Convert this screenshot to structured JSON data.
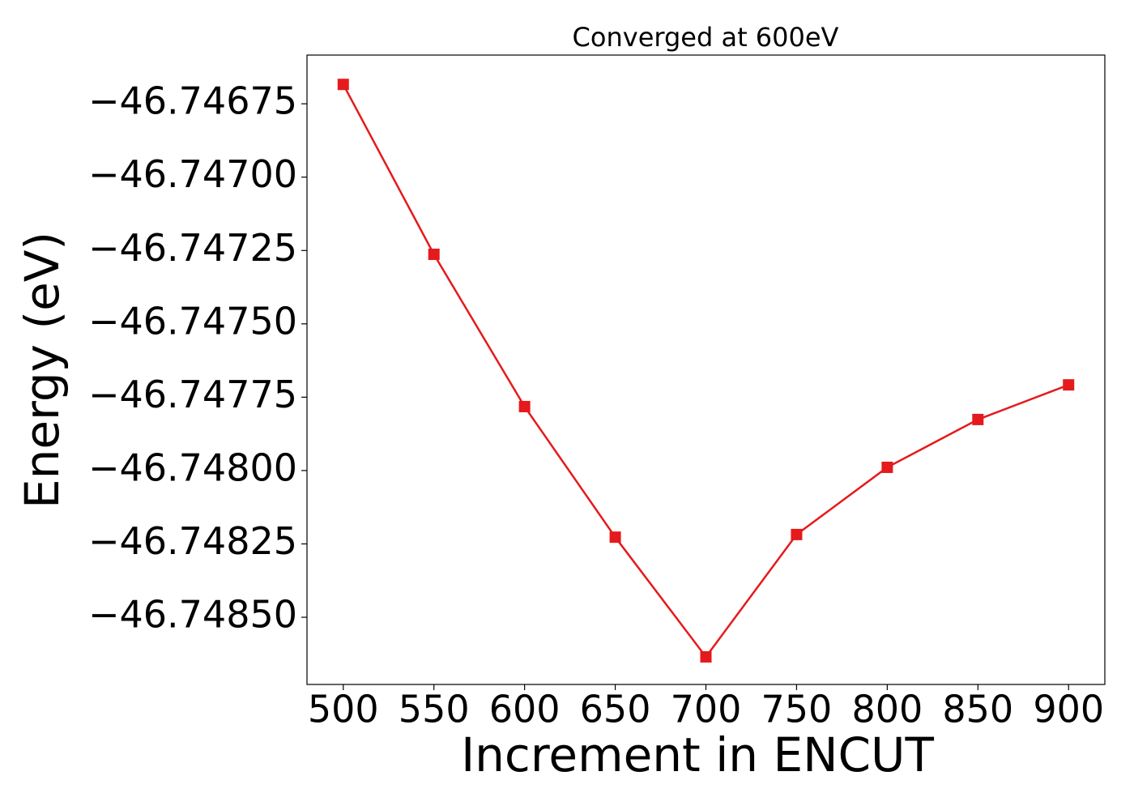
{
  "chart_data": {
    "type": "line",
    "title": "Converged at 600eV",
    "x_label": "Increment in ENCUT",
    "y_label": "Energy (eV)",
    "x": [
      500,
      550,
      600,
      650,
      700,
      750,
      800,
      850,
      900
    ],
    "values": [
      -46.746684,
      -46.747263,
      -46.747782,
      -46.748227,
      -46.748635,
      -46.748218,
      -46.747989,
      -46.747826,
      -46.747708
    ],
    "color": "#e41a1c",
    "marker": "square",
    "xlim": [
      480,
      920
    ],
    "xticks": [
      500,
      550,
      600,
      650,
      700,
      750,
      800,
      850,
      900
    ],
    "ylim": [
      -46.748729,
      -46.746584
    ],
    "yticks": [
      {
        "value": -46.74675,
        "label": "−46.74675"
      },
      {
        "value": -46.747,
        "label": "−46.74700"
      },
      {
        "value": -46.74725,
        "label": "−46.74725"
      },
      {
        "value": -46.7475,
        "label": "−46.74750"
      },
      {
        "value": -46.74775,
        "label": "−46.74775"
      },
      {
        "value": -46.748,
        "label": "−46.74800"
      },
      {
        "value": -46.74825,
        "label": "−46.74825"
      },
      {
        "value": -46.7485,
        "label": "−46.74850"
      }
    ],
    "grid": false
  }
}
